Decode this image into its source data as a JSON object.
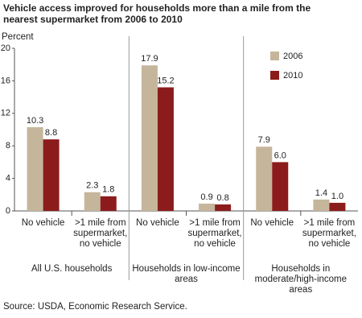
{
  "chart_data": {
    "type": "bar",
    "title": "Vehicle access improved for households more than a mile from the nearest supermarket from 2006 to 2010",
    "y_axis_label": "Percent",
    "categories": [
      "No vehicle",
      ">1 mile from supermarket, no vehicle",
      "No vehicle",
      ">1 mile from supermarket, no vehicle",
      "No vehicle",
      ">1 mile from supermarket, no vehicle"
    ],
    "groups": [
      "All U.S. households",
      "Households in low-income areas",
      "Households in moderate/high-income areas"
    ],
    "series": [
      {
        "name": "2006",
        "color": "#c5b69b",
        "values": [
          10.3,
          2.3,
          17.9,
          0.9,
          7.9,
          1.4
        ],
        "value_labels": [
          "10.3",
          "2.3",
          "17.9",
          "0.9",
          "7.9",
          "1.4"
        ]
      },
      {
        "name": "2010",
        "color": "#8c1c1c",
        "values": [
          8.8,
          1.8,
          15.2,
          0.8,
          6.0,
          1.0
        ],
        "value_labels": [
          "8.8",
          "1.8",
          "15.2",
          "0.8",
          "6.0",
          "1.0"
        ]
      }
    ],
    "ylim": [
      0,
      20
    ],
    "yticks": [
      0,
      4,
      8,
      12,
      16,
      20
    ],
    "grid": false,
    "legend": "top-right",
    "source": "Source: USDA, Economic Research Service."
  }
}
